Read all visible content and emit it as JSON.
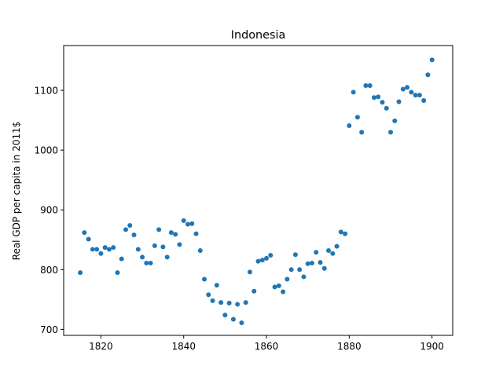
{
  "chart_data": {
    "type": "scatter",
    "title": "Indonesia",
    "xlabel": "",
    "ylabel": "Real GDP per capita in 2011$",
    "xlim": [
      1811,
      1905
    ],
    "ylim": [
      690,
      1175
    ],
    "xticks": [
      1820,
      1840,
      1860,
      1880,
      1900
    ],
    "yticks": [
      700,
      800,
      900,
      1000,
      1100
    ],
    "grid": false,
    "color": "#1f77b4",
    "series": [
      {
        "points": [
          [
            1815,
            795
          ],
          [
            1816,
            862
          ],
          [
            1817,
            851
          ],
          [
            1818,
            834
          ],
          [
            1819,
            834
          ],
          [
            1820,
            827
          ],
          [
            1821,
            837
          ],
          [
            1822,
            834
          ],
          [
            1823,
            837
          ],
          [
            1824,
            795
          ],
          [
            1825,
            818
          ],
          [
            1826,
            867
          ],
          [
            1827,
            874
          ],
          [
            1828,
            858
          ],
          [
            1829,
            834
          ],
          [
            1830,
            821
          ],
          [
            1831,
            811
          ],
          [
            1832,
            811
          ],
          [
            1833,
            840
          ],
          [
            1834,
            867
          ],
          [
            1835,
            838
          ],
          [
            1836,
            821
          ],
          [
            1837,
            862
          ],
          [
            1838,
            859
          ],
          [
            1839,
            842
          ],
          [
            1840,
            882
          ],
          [
            1841,
            876
          ],
          [
            1842,
            877
          ],
          [
            1843,
            860
          ],
          [
            1844,
            832
          ],
          [
            1845,
            784
          ],
          [
            1846,
            758
          ],
          [
            1847,
            748
          ],
          [
            1848,
            774
          ],
          [
            1849,
            745
          ],
          [
            1850,
            724
          ],
          [
            1851,
            744
          ],
          [
            1852,
            717
          ],
          [
            1853,
            742
          ],
          [
            1854,
            711
          ],
          [
            1855,
            745
          ],
          [
            1856,
            796
          ],
          [
            1857,
            764
          ],
          [
            1858,
            814
          ],
          [
            1859,
            816
          ],
          [
            1860,
            819
          ],
          [
            1861,
            824
          ],
          [
            1862,
            771
          ],
          [
            1863,
            773
          ],
          [
            1864,
            763
          ],
          [
            1865,
            784
          ],
          [
            1866,
            800
          ],
          [
            1867,
            825
          ],
          [
            1868,
            800
          ],
          [
            1869,
            788
          ],
          [
            1870,
            810
          ],
          [
            1871,
            811
          ],
          [
            1872,
            829
          ],
          [
            1873,
            812
          ],
          [
            1874,
            802
          ],
          [
            1875,
            832
          ],
          [
            1876,
            827
          ],
          [
            1877,
            839
          ],
          [
            1878,
            863
          ],
          [
            1879,
            860
          ],
          [
            1880,
            1041
          ],
          [
            1881,
            1097
          ],
          [
            1882,
            1055
          ],
          [
            1883,
            1030
          ],
          [
            1884,
            1108
          ],
          [
            1885,
            1108
          ],
          [
            1886,
            1088
          ],
          [
            1887,
            1089
          ],
          [
            1888,
            1080
          ],
          [
            1889,
            1070
          ],
          [
            1890,
            1030
          ],
          [
            1891,
            1049
          ],
          [
            1892,
            1081
          ],
          [
            1893,
            1102
          ],
          [
            1894,
            1105
          ],
          [
            1895,
            1097
          ],
          [
            1896,
            1092
          ],
          [
            1897,
            1092
          ],
          [
            1898,
            1083
          ],
          [
            1899,
            1126
          ],
          [
            1900,
            1151
          ]
        ]
      }
    ]
  }
}
